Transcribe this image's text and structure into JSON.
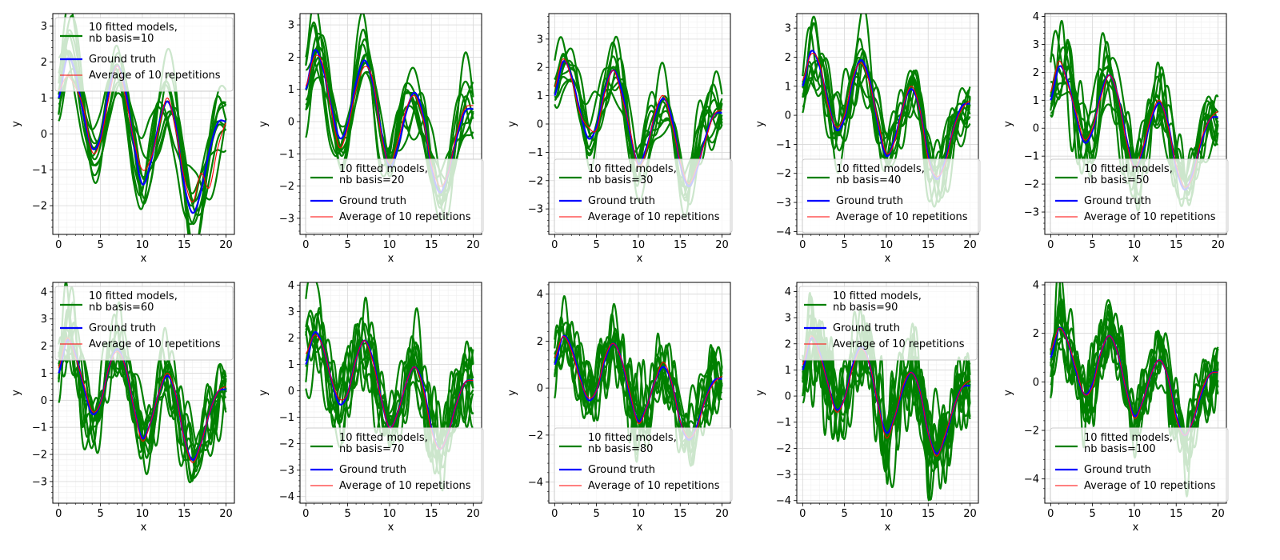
{
  "chart_data": [
    {
      "type": "line",
      "xlabel": "x",
      "ylabel": "y",
      "xlim": [
        -0.7,
        21.0
      ],
      "ylim": [
        -2.8,
        3.35
      ],
      "xticks": [
        0,
        5,
        10,
        15,
        20
      ],
      "yticks": [
        -2,
        -1,
        0,
        1,
        2,
        3
      ],
      "grid": true,
      "legend_position": "upper-left",
      "legend": [
        "10 fitted models,\n nb basis=10",
        "Ground truth",
        "Average of 10 repetitions"
      ],
      "x": [
        0,
        1,
        2,
        3,
        4,
        5,
        6,
        7,
        8,
        9,
        10,
        11,
        12,
        13,
        14,
        15,
        16,
        17,
        18,
        19,
        20
      ],
      "series": [
        {
          "name": "Ground truth",
          "color": "#0000ff",
          "values": [
            1.0,
            2.1,
            1.7,
            0.5,
            -0.4,
            -0.1,
            1.2,
            1.9,
            1.2,
            -0.3,
            -1.4,
            -0.8,
            0.3,
            0.9,
            0.2,
            -1.4,
            -2.2,
            -1.6,
            -0.5,
            0.3,
            0.35
          ]
        },
        {
          "name": "Average of 10 repetitions",
          "color": "#ff0000",
          "values": [
            1.2,
            1.6,
            1.3,
            0.7,
            -0.5,
            -0.2,
            1.0,
            1.9,
            1.0,
            -0.2,
            -1.0,
            -0.7,
            0.2,
            1.0,
            0.1,
            -1.2,
            -1.9,
            -1.1,
            -1.5,
            -0.4,
            0.3
          ]
        }
      ]
    },
    {
      "type": "line",
      "xlabel": "x",
      "ylabel": "y",
      "xlim": [
        -0.7,
        21.0
      ],
      "ylim": [
        -3.5,
        3.35
      ],
      "xticks": [
        0,
        5,
        10,
        15,
        20
      ],
      "yticks": [
        -3,
        -2,
        -1,
        0,
        1,
        2,
        3
      ],
      "grid": true,
      "legend_position": "lower-right",
      "legend": [
        "10 fitted models,\n nb basis=20",
        "Ground truth",
        "Average of 10 repetitions"
      ],
      "x": [
        0,
        1,
        2,
        3,
        4,
        5,
        6,
        7,
        8,
        9,
        10,
        11,
        12,
        13,
        14,
        15,
        16,
        17,
        18,
        19,
        20
      ],
      "series": [
        {
          "name": "Ground truth",
          "color": "#0000ff",
          "values": [
            1.0,
            2.2,
            1.7,
            0.5,
            -0.5,
            -0.1,
            1.2,
            1.9,
            1.2,
            -0.3,
            -1.4,
            -0.8,
            0.3,
            0.9,
            0.2,
            -1.4,
            -2.2,
            -1.6,
            -0.5,
            0.3,
            0.4
          ]
        },
        {
          "name": "Average of 10 repetitions",
          "color": "#ff0000",
          "values": [
            1.1,
            2.0,
            1.8,
            0.4,
            -0.8,
            -0.2,
            1.0,
            1.7,
            1.3,
            -0.4,
            -1.3,
            -0.6,
            0.4,
            0.8,
            0.1,
            -1.3,
            -2.0,
            -1.6,
            -0.4,
            0.4,
            0.5
          ]
        }
      ]
    },
    {
      "type": "line",
      "xlabel": "x",
      "ylabel": "y",
      "xlim": [
        -0.7,
        21.0
      ],
      "ylim": [
        -3.9,
        3.9
      ],
      "xticks": [
        0,
        5,
        10,
        15,
        20
      ],
      "yticks": [
        -3,
        -2,
        -1,
        0,
        1,
        2,
        3
      ],
      "grid": true,
      "legend_position": "lower-right",
      "legend": [
        "10 fitted models,\n nb basis=30",
        "Ground truth",
        "Average of 10 repetitions"
      ],
      "x": [
        0,
        1,
        2,
        3,
        4,
        5,
        6,
        7,
        8,
        9,
        10,
        11,
        12,
        13,
        14,
        15,
        16,
        17,
        18,
        19,
        20
      ],
      "series": [
        {
          "name": "Ground truth",
          "color": "#0000ff",
          "values": [
            1.0,
            2.2,
            1.7,
            0.5,
            -0.5,
            -0.1,
            1.2,
            1.9,
            1.2,
            -0.3,
            -1.4,
            -0.8,
            0.3,
            0.9,
            0.2,
            -1.4,
            -2.2,
            -1.6,
            -0.5,
            0.3,
            0.4
          ]
        },
        {
          "name": "Average of 10 repetitions",
          "color": "#ff0000",
          "values": [
            1.3,
            2.3,
            1.6,
            0.4,
            -0.1,
            -0.2,
            1.1,
            1.9,
            1.0,
            -0.2,
            -1.5,
            -0.9,
            0.4,
            1.0,
            0.0,
            -1.3,
            -2.1,
            -1.5,
            -0.6,
            0.3,
            0.5
          ]
        }
      ]
    },
    {
      "type": "line",
      "xlabel": "x",
      "ylabel": "y",
      "xlim": [
        -0.7,
        21.0
      ],
      "ylim": [
        -4.1,
        3.5
      ],
      "xticks": [
        0,
        5,
        10,
        15,
        20
      ],
      "yticks": [
        -4,
        -3,
        -2,
        -1,
        0,
        1,
        2,
        3
      ],
      "grid": true,
      "legend_position": "lower-right",
      "legend": [
        "10 fitted models,\n nb basis=40",
        "Ground truth",
        "Average of 10 repetitions"
      ],
      "x": [
        0,
        1,
        2,
        3,
        4,
        5,
        6,
        7,
        8,
        9,
        10,
        11,
        12,
        13,
        14,
        15,
        16,
        17,
        18,
        19,
        20
      ],
      "series": [
        {
          "name": "Ground truth",
          "color": "#0000ff",
          "values": [
            1.0,
            2.2,
            1.7,
            0.5,
            -0.5,
            -0.1,
            1.2,
            1.9,
            1.2,
            -0.3,
            -1.4,
            -0.8,
            0.3,
            0.9,
            0.2,
            -1.4,
            -2.2,
            -1.6,
            -0.5,
            0.3,
            0.4
          ]
        },
        {
          "name": "Average of 10 repetitions",
          "color": "#ff0000",
          "values": [
            1.2,
            2.1,
            1.8,
            0.4,
            -0.4,
            0.0,
            1.3,
            1.8,
            1.1,
            -0.2,
            -1.3,
            -0.9,
            0.3,
            1.0,
            0.2,
            -1.5,
            -2.1,
            -1.7,
            -0.5,
            0.2,
            0.5
          ]
        }
      ]
    },
    {
      "type": "line",
      "xlabel": "x",
      "ylabel": "y",
      "xlim": [
        -0.7,
        21.0
      ],
      "ylim": [
        -3.8,
        4.1
      ],
      "xticks": [
        0,
        5,
        10,
        15,
        20
      ],
      "yticks": [
        -3,
        -2,
        -1,
        0,
        1,
        2,
        3,
        4
      ],
      "grid": true,
      "legend_position": "lower-right",
      "legend": [
        "10 fitted models,\n nb basis=50",
        "Ground truth",
        "Average of 10 repetitions"
      ],
      "x": [
        0,
        1,
        2,
        3,
        4,
        5,
        6,
        7,
        8,
        9,
        10,
        11,
        12,
        13,
        14,
        15,
        16,
        17,
        18,
        19,
        20
      ],
      "series": [
        {
          "name": "Ground truth",
          "color": "#0000ff",
          "values": [
            1.0,
            2.2,
            1.7,
            0.5,
            -0.5,
            -0.1,
            1.2,
            1.9,
            1.2,
            -0.3,
            -1.4,
            -0.8,
            0.3,
            0.9,
            0.2,
            -1.4,
            -2.2,
            -1.6,
            -0.5,
            0.3,
            0.4
          ]
        },
        {
          "name": "Average of 10 repetitions",
          "color": "#ff0000",
          "values": [
            1.3,
            2.4,
            1.6,
            0.6,
            -0.4,
            0.0,
            1.1,
            1.9,
            1.2,
            -0.4,
            -1.4,
            -0.7,
            0.4,
            1.0,
            0.1,
            -1.3,
            -2.1,
            -1.7,
            -0.4,
            0.3,
            0.6
          ]
        }
      ]
    },
    {
      "type": "line",
      "xlabel": "x",
      "ylabel": "y",
      "xlim": [
        -0.7,
        21.0
      ],
      "ylim": [
        -3.8,
        4.35
      ],
      "xticks": [
        0,
        5,
        10,
        15,
        20
      ],
      "yticks": [
        -3,
        -2,
        -1,
        0,
        1,
        2,
        3,
        4
      ],
      "grid": true,
      "legend_position": "upper-left",
      "legend": [
        "10 fitted models,\n nb basis=60",
        "Ground truth",
        "Average of 10 repetitions"
      ],
      "x": [
        0,
        1,
        2,
        3,
        4,
        5,
        6,
        7,
        8,
        9,
        10,
        11,
        12,
        13,
        14,
        15,
        16,
        17,
        18,
        19,
        20
      ],
      "series": [
        {
          "name": "Ground truth",
          "color": "#0000ff",
          "values": [
            1.0,
            2.2,
            1.7,
            0.5,
            -0.5,
            -0.1,
            1.2,
            1.9,
            1.2,
            -0.3,
            -1.4,
            -0.8,
            0.3,
            0.9,
            0.2,
            -1.4,
            -2.2,
            -1.6,
            -0.5,
            0.3,
            0.4
          ]
        },
        {
          "name": "Average of 10 repetitions",
          "color": "#ff0000",
          "values": [
            1.2,
            2.3,
            1.6,
            0.6,
            -0.4,
            -0.1,
            1.2,
            1.8,
            1.2,
            -0.3,
            -1.5,
            -0.8,
            0.3,
            1.0,
            0.2,
            -1.4,
            -2.3,
            -1.6,
            -0.5,
            0.3,
            0.5
          ]
        }
      ]
    },
    {
      "type": "line",
      "xlabel": "x",
      "ylabel": "y",
      "xlim": [
        -0.7,
        21.0
      ],
      "ylim": [
        -4.25,
        4.1
      ],
      "xticks": [
        0,
        5,
        10,
        15,
        20
      ],
      "yticks": [
        -4,
        -3,
        -2,
        -1,
        0,
        1,
        2,
        3,
        4
      ],
      "grid": true,
      "legend_position": "lower-right",
      "legend": [
        "10 fitted models,\n nb basis=70",
        "Ground truth",
        "Average of 10 repetitions"
      ],
      "x": [
        0,
        1,
        2,
        3,
        4,
        5,
        6,
        7,
        8,
        9,
        10,
        11,
        12,
        13,
        14,
        15,
        16,
        17,
        18,
        19,
        20
      ],
      "series": [
        {
          "name": "Ground truth",
          "color": "#0000ff",
          "values": [
            1.0,
            2.2,
            1.7,
            0.5,
            -0.5,
            -0.1,
            1.2,
            1.9,
            1.2,
            -0.3,
            -1.4,
            -0.8,
            0.3,
            0.9,
            0.2,
            -1.4,
            -2.2,
            -1.6,
            -0.5,
            0.3,
            0.4
          ]
        },
        {
          "name": "Average of 10 repetitions",
          "color": "#ff0000",
          "values": [
            1.4,
            2.1,
            1.7,
            0.5,
            -0.3,
            -0.1,
            1.2,
            1.9,
            1.1,
            -0.3,
            -1.4,
            -0.8,
            0.3,
            0.9,
            0.1,
            -1.5,
            -2.2,
            -1.6,
            -0.5,
            0.3,
            0.4
          ]
        }
      ]
    },
    {
      "type": "line",
      "xlabel": "x",
      "ylabel": "y",
      "xlim": [
        -0.7,
        21.0
      ],
      "ylim": [
        -4.9,
        4.5
      ],
      "xticks": [
        0,
        5,
        10,
        15,
        20
      ],
      "yticks": [
        -4,
        -2,
        0,
        2,
        4
      ],
      "grid": true,
      "legend_position": "lower-right",
      "legend": [
        "10 fitted models,\n nb basis=80",
        "Ground truth",
        "Average of 10 repetitions"
      ],
      "x": [
        0,
        1,
        2,
        3,
        4,
        5,
        6,
        7,
        8,
        9,
        10,
        11,
        12,
        13,
        14,
        15,
        16,
        17,
        18,
        19,
        20
      ],
      "series": [
        {
          "name": "Ground truth",
          "color": "#0000ff",
          "values": [
            1.0,
            2.2,
            1.7,
            0.5,
            -0.5,
            -0.1,
            1.2,
            1.9,
            1.2,
            -0.3,
            -1.4,
            -0.8,
            0.3,
            0.9,
            0.2,
            -1.4,
            -2.2,
            -1.6,
            -0.5,
            0.3,
            0.4
          ]
        },
        {
          "name": "Average of 10 repetitions",
          "color": "#ff0000",
          "values": [
            1.3,
            2.2,
            1.6,
            0.4,
            -0.4,
            -0.1,
            1.3,
            1.9,
            1.2,
            -0.2,
            -1.5,
            -0.8,
            0.3,
            1.1,
            0.2,
            -1.4,
            -2.1,
            -1.7,
            -0.5,
            0.2,
            0.5
          ]
        }
      ]
    },
    {
      "type": "line",
      "xlabel": "x",
      "ylabel": "y",
      "xlim": [
        -0.7,
        21.0
      ],
      "ylim": [
        -4.1,
        4.35
      ],
      "xticks": [
        0,
        5,
        10,
        15,
        20
      ],
      "yticks": [
        -4,
        -3,
        -2,
        -1,
        0,
        1,
        2,
        3,
        4
      ],
      "grid": true,
      "legend_position": "upper-left",
      "legend": [
        "10 fitted models,\n nb basis=90",
        "Ground truth",
        "Average of 10 repetitions"
      ],
      "x": [
        0,
        1,
        2,
        3,
        4,
        5,
        6,
        7,
        8,
        9,
        10,
        11,
        12,
        13,
        14,
        15,
        16,
        17,
        18,
        19,
        20
      ],
      "series": [
        {
          "name": "Ground truth",
          "color": "#0000ff",
          "values": [
            1.0,
            2.2,
            1.7,
            0.5,
            -0.5,
            -0.1,
            1.2,
            1.9,
            1.2,
            -0.3,
            -1.4,
            -0.8,
            0.3,
            0.9,
            0.2,
            -1.4,
            -2.2,
            -1.6,
            -0.5,
            0.3,
            0.4
          ]
        },
        {
          "name": "Average of 10 repetitions",
          "color": "#ff0000",
          "values": [
            1.2,
            2.3,
            1.6,
            0.5,
            -0.6,
            -0.1,
            1.1,
            1.8,
            1.2,
            -0.3,
            -1.6,
            -0.8,
            0.4,
            0.9,
            0.2,
            -1.4,
            -2.3,
            -1.5,
            -0.5,
            0.3,
            0.6
          ]
        }
      ]
    },
    {
      "type": "line",
      "xlabel": "x",
      "ylabel": "y",
      "xlim": [
        -0.7,
        21.0
      ],
      "ylim": [
        -5.0,
        4.1
      ],
      "xticks": [
        0,
        5,
        10,
        15,
        20
      ],
      "yticks": [
        -4,
        -2,
        0,
        2,
        4
      ],
      "grid": true,
      "legend_position": "lower-right",
      "legend": [
        "10 fitted models,\n nb basis=100",
        "Ground truth",
        "Average of 10 repetitions"
      ],
      "x": [
        0,
        1,
        2,
        3,
        4,
        5,
        6,
        7,
        8,
        9,
        10,
        11,
        12,
        13,
        14,
        15,
        16,
        17,
        18,
        19,
        20
      ],
      "series": [
        {
          "name": "Ground truth",
          "color": "#0000ff",
          "values": [
            1.0,
            2.2,
            1.7,
            0.5,
            -0.5,
            -0.1,
            1.2,
            1.9,
            1.2,
            -0.3,
            -1.4,
            -0.8,
            0.3,
            0.9,
            0.2,
            -1.4,
            -2.2,
            -1.6,
            -0.5,
            0.3,
            0.4
          ]
        },
        {
          "name": "Average of 10 repetitions",
          "color": "#ff0000",
          "values": [
            1.3,
            2.2,
            1.7,
            0.6,
            -0.5,
            -0.2,
            1.2,
            1.9,
            1.2,
            -0.3,
            -1.5,
            -0.8,
            0.3,
            0.9,
            0.2,
            -1.5,
            -2.2,
            -1.6,
            -0.4,
            0.3,
            0.4
          ]
        }
      ]
    }
  ],
  "colors": {
    "fitted": "#008000",
    "ground_truth": "#0000ff",
    "average": "#ff0000"
  }
}
